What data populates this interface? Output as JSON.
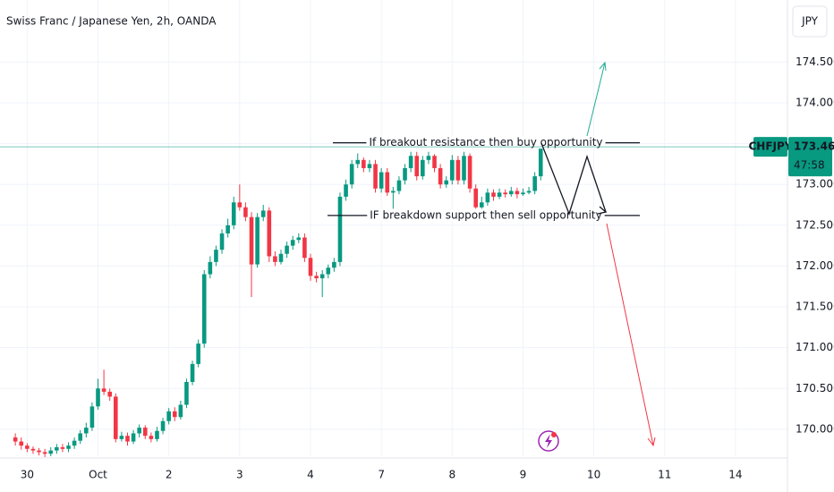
{
  "chart_data": {
    "type": "candlestick",
    "title": "Swiss Franc / Japanese Yen, 2h, OANDA",
    "currency": "JPY",
    "symbol": "CHFJPY",
    "countdown": "47:58",
    "up_color": "#089981",
    "down_color": "#f23645",
    "grid": true,
    "xlim": [
      -2.6,
      130.8
    ],
    "ylim": [
      169.67,
      175.26
    ],
    "xticks": [
      {
        "value": 2,
        "label": "30"
      },
      {
        "value": 14,
        "label": "Oct"
      },
      {
        "value": 26,
        "label": "2"
      },
      {
        "value": 38,
        "label": "3"
      },
      {
        "value": 50,
        "label": "4"
      },
      {
        "value": 62,
        "label": "7"
      },
      {
        "value": 74,
        "label": "8"
      },
      {
        "value": 86,
        "label": "9"
      },
      {
        "value": 98,
        "label": "10"
      },
      {
        "value": 110,
        "label": "11"
      },
      {
        "value": 122,
        "label": "14"
      }
    ],
    "yticks": [
      {
        "value": 170,
        "label": "170.000"
      },
      {
        "value": 170.5,
        "label": "170.500"
      },
      {
        "value": 171,
        "label": "171.000"
      },
      {
        "value": 171.5,
        "label": "171.500"
      },
      {
        "value": 172,
        "label": "172.000"
      },
      {
        "value": 172.5,
        "label": "172.500"
      },
      {
        "value": 173,
        "label": "173.000"
      },
      {
        "value": 173.5,
        "label": "173.500"
      },
      {
        "value": 174,
        "label": "174.000"
      },
      {
        "value": 174.5,
        "label": "174.500"
      }
    ],
    "annotations": [
      {
        "text": "If breakout resistance then buy opportunity",
        "value": 173.51
      },
      {
        "text": "IF breakdown support then sell opportunity",
        "value": 172.62
      }
    ],
    "open": [
      169.9,
      169.85,
      169.8,
      169.76,
      169.74,
      169.72,
      169.7,
      169.74,
      169.78,
      169.76,
      169.8,
      169.86,
      169.95,
      170.02,
      170.28,
      170.5,
      170.46,
      170.4,
      169.88,
      169.92,
      169.85,
      169.95,
      170.02,
      169.92,
      169.88,
      169.98,
      170.1,
      170.22,
      170.15,
      170.3,
      170.58,
      170.8,
      171.05,
      171.9,
      172.05,
      172.2,
      172.4,
      172.5,
      172.78,
      172.72,
      172.6,
      172.02,
      172.6,
      172.68,
      172.12,
      172.05,
      172.15,
      172.25,
      172.32,
      172.35,
      172.1,
      171.88,
      171.85,
      171.9,
      171.98,
      172.05,
      172.85,
      173.0,
      173.25,
      173.3,
      173.2,
      173.25,
      172.95,
      173.15,
      172.9,
      172.92,
      173.05,
      173.2,
      173.35,
      173.1,
      173.3,
      173.35,
      173.2,
      173.0,
      173.05,
      173.3,
      173.05,
      173.35,
      172.95,
      172.72,
      172.78,
      172.9,
      172.85,
      172.9,
      172.88,
      172.92,
      172.88,
      172.9,
      172.92,
      173.1
    ],
    "high": [
      169.95,
      169.9,
      169.83,
      169.79,
      169.77,
      169.76,
      169.78,
      169.82,
      169.82,
      169.84,
      169.9,
      169.99,
      170.08,
      170.33,
      170.62,
      170.73,
      170.5,
      170.44,
      169.97,
      169.96,
      169.99,
      170.06,
      170.05,
      169.96,
      170.03,
      170.14,
      170.26,
      170.27,
      170.35,
      170.62,
      170.84,
      171.1,
      171.95,
      172.12,
      172.25,
      172.45,
      172.58,
      172.85,
      173.0,
      172.78,
      172.66,
      172.65,
      172.75,
      172.72,
      172.18,
      172.2,
      172.3,
      172.37,
      172.4,
      172.4,
      172.15,
      171.93,
      171.95,
      172.02,
      172.1,
      172.9,
      173.06,
      173.3,
      173.38,
      173.33,
      173.3,
      173.3,
      173.2,
      173.2,
      172.97,
      173.1,
      173.25,
      173.4,
      173.4,
      173.35,
      173.4,
      173.37,
      173.25,
      173.1,
      173.36,
      173.35,
      173.4,
      173.38,
      173.0,
      172.85,
      172.95,
      172.94,
      172.95,
      172.94,
      172.97,
      172.96,
      172.95,
      172.97,
      173.15,
      173.5
    ],
    "low": [
      169.8,
      169.75,
      169.72,
      169.7,
      169.68,
      169.66,
      169.67,
      169.7,
      169.72,
      169.72,
      169.76,
      169.82,
      169.9,
      169.98,
      170.24,
      170.42,
      170.35,
      169.84,
      169.85,
      169.8,
      169.82,
      169.9,
      169.88,
      169.84,
      169.85,
      169.94,
      170.06,
      170.1,
      170.12,
      170.26,
      170.54,
      170.76,
      171.0,
      171.85,
      172.0,
      172.15,
      172.35,
      172.45,
      172.68,
      172.55,
      171.62,
      171.98,
      172.55,
      172.05,
      172.0,
      172.02,
      172.1,
      172.2,
      172.28,
      172.05,
      171.82,
      171.8,
      171.62,
      171.85,
      171.93,
      172.0,
      172.8,
      172.95,
      173.2,
      173.15,
      173.15,
      172.9,
      172.9,
      172.86,
      172.7,
      172.88,
      173.0,
      173.15,
      173.05,
      173.06,
      173.25,
      173.15,
      172.95,
      172.96,
      173.0,
      173.0,
      173.0,
      172.9,
      172.66,
      172.68,
      172.74,
      172.8,
      172.82,
      172.84,
      172.85,
      172.83,
      172.86,
      172.88,
      172.88,
      173.05
    ],
    "close": [
      169.85,
      169.8,
      169.76,
      169.74,
      169.72,
      169.7,
      169.74,
      169.78,
      169.76,
      169.8,
      169.86,
      169.95,
      170.02,
      170.28,
      170.5,
      170.46,
      170.4,
      169.88,
      169.92,
      169.85,
      169.95,
      170.02,
      169.92,
      169.88,
      169.98,
      170.1,
      170.22,
      170.15,
      170.3,
      170.58,
      170.8,
      171.05,
      171.9,
      172.05,
      172.2,
      172.4,
      172.5,
      172.78,
      172.72,
      172.6,
      172.02,
      172.6,
      172.68,
      172.12,
      172.05,
      172.15,
      172.25,
      172.32,
      172.35,
      172.1,
      171.88,
      171.85,
      171.9,
      171.98,
      172.05,
      172.85,
      173.0,
      173.25,
      173.3,
      173.2,
      173.25,
      172.95,
      173.15,
      172.9,
      172.92,
      173.05,
      173.2,
      173.35,
      173.1,
      173.3,
      173.35,
      173.2,
      173.0,
      173.05,
      173.3,
      173.05,
      173.35,
      172.95,
      172.72,
      172.78,
      172.9,
      172.85,
      172.9,
      172.88,
      172.92,
      172.88,
      172.9,
      172.92,
      173.1,
      173.461
    ]
  }
}
